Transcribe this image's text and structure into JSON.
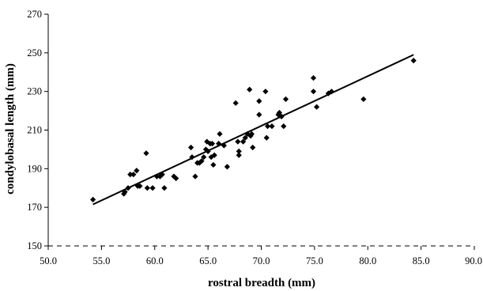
{
  "chart_data": {
    "type": "scatter",
    "title": "",
    "xlabel": "rostral breadth (mm)",
    "ylabel": "condylobasal length (mm)",
    "xlim": [
      50,
      90
    ],
    "ylim": [
      150,
      270
    ],
    "x_ticks": [
      "50.0",
      "55.0",
      "60.0",
      "65.0",
      "70.0",
      "75.0",
      "80.0",
      "85.0",
      "90.0"
    ],
    "y_ticks": [
      "150",
      "170",
      "190",
      "210",
      "230",
      "250",
      "270"
    ],
    "x_tick_values": [
      50,
      55,
      60,
      65,
      70,
      75,
      80,
      85,
      90
    ],
    "y_tick_values": [
      150,
      170,
      190,
      210,
      230,
      250,
      270
    ],
    "grid": false,
    "legend": "none",
    "marker": "diamond",
    "colors": {
      "points": "#000000",
      "axes": "#000000",
      "trendline": "#000000"
    },
    "points": [
      [
        54.2,
        174
      ],
      [
        57.1,
        177
      ],
      [
        57.2,
        178
      ],
      [
        57.5,
        180
      ],
      [
        57.7,
        187
      ],
      [
        58.0,
        187
      ],
      [
        58.3,
        189
      ],
      [
        58.4,
        181
      ],
      [
        58.6,
        181
      ],
      [
        59.2,
        198
      ],
      [
        59.3,
        180
      ],
      [
        59.8,
        180
      ],
      [
        60.2,
        186
      ],
      [
        60.5,
        186
      ],
      [
        60.7,
        187
      ],
      [
        60.9,
        180
      ],
      [
        61.8,
        186
      ],
      [
        62.0,
        185
      ],
      [
        63.4,
        201
      ],
      [
        63.5,
        196
      ],
      [
        63.8,
        186
      ],
      [
        64.0,
        193
      ],
      [
        64.2,
        193
      ],
      [
        64.4,
        194
      ],
      [
        64.6,
        196
      ],
      [
        64.8,
        200
      ],
      [
        64.9,
        204
      ],
      [
        65.0,
        199
      ],
      [
        65.2,
        203
      ],
      [
        65.3,
        196
      ],
      [
        65.4,
        203
      ],
      [
        65.5,
        192
      ],
      [
        65.6,
        197
      ],
      [
        66.0,
        203
      ],
      [
        66.1,
        208
      ],
      [
        66.5,
        202
      ],
      [
        66.8,
        191
      ],
      [
        67.6,
        224
      ],
      [
        67.8,
        204
      ],
      [
        67.9,
        199
      ],
      [
        67.9,
        197
      ],
      [
        68.3,
        204
      ],
      [
        68.5,
        206
      ],
      [
        68.7,
        208
      ],
      [
        68.9,
        231
      ],
      [
        69.0,
        207
      ],
      [
        69.1,
        208
      ],
      [
        69.2,
        201
      ],
      [
        69.8,
        225
      ],
      [
        69.8,
        218
      ],
      [
        70.4,
        230
      ],
      [
        70.5,
        206
      ],
      [
        70.6,
        212
      ],
      [
        71.0,
        212
      ],
      [
        71.6,
        218
      ],
      [
        71.7,
        219
      ],
      [
        71.9,
        217
      ],
      [
        72.1,
        212
      ],
      [
        72.3,
        226
      ],
      [
        74.9,
        237
      ],
      [
        74.9,
        230
      ],
      [
        75.2,
        222
      ],
      [
        76.3,
        229
      ],
      [
        76.6,
        230
      ],
      [
        79.6,
        226
      ],
      [
        84.3,
        246
      ]
    ],
    "trendline": {
      "x": [
        54.2,
        84.3
      ],
      "y": [
        171.5,
        249.0
      ]
    }
  }
}
